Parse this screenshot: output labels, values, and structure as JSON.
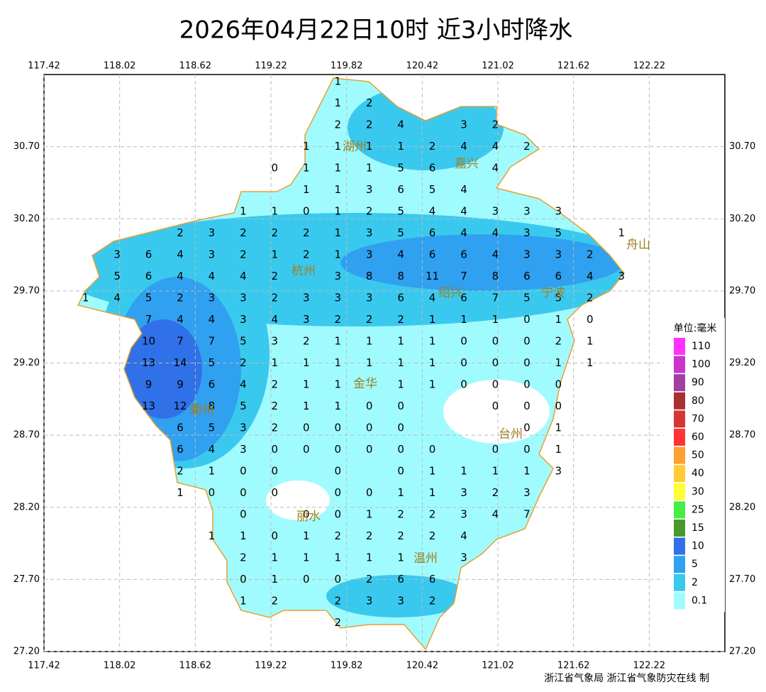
{
  "chart_data": {
    "type": "station-map",
    "title": "2026年04月22日10时  近3小时降水",
    "xlim": [
      117.42,
      122.82
    ],
    "ylim": [
      27.2,
      31.2
    ],
    "xticks": [
      117.42,
      118.02,
      118.62,
      119.22,
      119.82,
      120.42,
      121.02,
      121.62,
      122.22
    ],
    "yticks": [
      {
        "value": 30.7,
        "label": "30.70"
      },
      {
        "value": 30.2,
        "label": "30.20"
      },
      {
        "value": 29.7,
        "label": "29.70"
      },
      {
        "value": 29.2,
        "label": "29.20"
      },
      {
        "value": 28.7,
        "label": "28.70"
      },
      {
        "value": 28.2,
        "label": "28.20"
      },
      {
        "value": 27.7,
        "label": "27.70"
      },
      {
        "value": 27.2,
        "label": "27.20"
      }
    ],
    "grid": true,
    "rows": [
      {
        "lat": 31.15,
        "lon": [
          119.75
        ],
        "values": [
          1
        ]
      },
      {
        "lat": 31.0,
        "lon": [
          119.75,
          120.0
        ],
        "values": [
          1,
          2
        ]
      },
      {
        "lat": 30.85,
        "lon": [
          119.75,
          120.0,
          120.25,
          120.75,
          121.0
        ],
        "values": [
          2,
          2,
          4,
          3,
          2
        ]
      },
      {
        "lat": 30.7,
        "lon": [
          119.5,
          119.75,
          120.0,
          120.25,
          120.5,
          120.75,
          121.0,
          121.25
        ],
        "values": [
          1,
          1,
          1,
          1,
          2,
          4,
          4,
          2
        ]
      },
      {
        "lat": 30.55,
        "lon": [
          119.25,
          119.5,
          119.75,
          120.0,
          120.25,
          120.5,
          121.0
        ],
        "values": [
          0,
          1,
          1,
          1,
          5,
          6,
          4
        ]
      },
      {
        "lat": 30.4,
        "lon": [
          119.5,
          119.75,
          120.0,
          120.25,
          120.5,
          120.75
        ],
        "values": [
          1,
          1,
          3,
          6,
          5,
          4
        ]
      },
      {
        "lat": 30.25,
        "lon": [
          119.0,
          119.25,
          119.5,
          119.75,
          120.0,
          120.25,
          120.5,
          120.75,
          121.0,
          121.25,
          121.5
        ],
        "values": [
          1,
          1,
          0,
          1,
          2,
          5,
          4,
          4,
          3,
          3,
          3
        ]
      },
      {
        "lat": 30.1,
        "lon": [
          118.5,
          118.75,
          119.0,
          119.25,
          119.5,
          119.75,
          120.0,
          120.25,
          120.5,
          120.75,
          121.0,
          121.25,
          121.5,
          122.0
        ],
        "values": [
          2,
          3,
          2,
          2,
          2,
          1,
          3,
          5,
          6,
          4,
          4,
          3,
          5,
          1
        ]
      },
      {
        "lat": 29.95,
        "lon": [
          118.0,
          118.25,
          118.5,
          118.75,
          119.0,
          119.25,
          119.5,
          119.75,
          120.0,
          120.25,
          120.5,
          120.75,
          121.0,
          121.25,
          121.5,
          121.75
        ],
        "values": [
          3,
          6,
          4,
          3,
          2,
          1,
          2,
          1,
          3,
          4,
          6,
          6,
          4,
          3,
          3,
          2
        ]
      },
      {
        "lat": 29.8,
        "lon": [
          118.0,
          118.25,
          118.5,
          118.75,
          119.0,
          119.25,
          119.75,
          120.0,
          120.25,
          120.5,
          120.75,
          121.0,
          121.25,
          121.5,
          121.75,
          122.0
        ],
        "values": [
          5,
          6,
          4,
          4,
          4,
          2,
          3,
          8,
          8,
          11,
          7,
          8,
          6,
          6,
          4,
          3
        ]
      },
      {
        "lat": 29.65,
        "lon": [
          117.75,
          118.0,
          118.25,
          118.5,
          118.75,
          119.0,
          119.25,
          119.5,
          119.75,
          120.0,
          120.25,
          120.5,
          120.75,
          121.0,
          121.25,
          121.5,
          121.75
        ],
        "values": [
          1,
          4,
          5,
          2,
          3,
          3,
          2,
          3,
          3,
          3,
          6,
          4,
          6,
          7,
          5,
          5,
          2
        ]
      },
      {
        "lat": 29.5,
        "lon": [
          118.25,
          118.5,
          118.75,
          119.0,
          119.25,
          119.5,
          119.75,
          120.0,
          120.25,
          120.5,
          120.75,
          121.0,
          121.25,
          121.5,
          121.75
        ],
        "values": [
          7,
          4,
          4,
          3,
          4,
          3,
          2,
          2,
          2,
          1,
          1,
          1,
          0,
          1,
          0
        ]
      },
      {
        "lat": 29.35,
        "lon": [
          118.25,
          118.5,
          118.75,
          119.0,
          119.25,
          119.5,
          119.75,
          120.0,
          120.25,
          120.5,
          120.75,
          121.0,
          121.25,
          121.5,
          121.75
        ],
        "values": [
          10,
          7,
          7,
          5,
          3,
          2,
          1,
          1,
          1,
          1,
          0,
          0,
          0,
          2,
          1
        ]
      },
      {
        "lat": 29.2,
        "lon": [
          118.25,
          118.5,
          118.75,
          119.0,
          119.25,
          119.5,
          119.75,
          120.0,
          120.25,
          120.5,
          120.75,
          121.0,
          121.25,
          121.5,
          121.75
        ],
        "values": [
          13,
          14,
          5,
          2,
          1,
          1,
          1,
          1,
          1,
          1,
          0,
          0,
          0,
          1,
          1
        ]
      },
      {
        "lat": 29.05,
        "lon": [
          118.25,
          118.5,
          118.75,
          119.0,
          119.25,
          119.5,
          119.75,
          120.25,
          120.5,
          120.75,
          121.0,
          121.25,
          121.5
        ],
        "values": [
          9,
          9,
          6,
          4,
          2,
          1,
          1,
          1,
          1,
          0,
          0,
          0,
          0
        ]
      },
      {
        "lat": 28.9,
        "lon": [
          118.25,
          118.5,
          118.75,
          119.0,
          119.25,
          119.5,
          119.75,
          120.0,
          120.25,
          121.0,
          121.25,
          121.5
        ],
        "values": [
          13,
          12,
          8,
          5,
          2,
          1,
          1,
          0,
          0,
          0,
          0,
          0
        ]
      },
      {
        "lat": 28.75,
        "lon": [
          118.5,
          118.75,
          119.0,
          119.25,
          119.5,
          119.75,
          120.0,
          120.25,
          121.25,
          121.5
        ],
        "values": [
          6,
          5,
          3,
          2,
          0,
          0,
          0,
          0,
          0,
          1
        ]
      },
      {
        "lat": 28.6,
        "lon": [
          118.5,
          118.75,
          119.0,
          119.25,
          119.5,
          119.75,
          120.0,
          120.25,
          120.5,
          121.0,
          121.25,
          121.5
        ],
        "values": [
          6,
          4,
          3,
          0,
          0,
          0,
          0,
          0,
          0,
          0,
          0,
          1
        ]
      },
      {
        "lat": 28.45,
        "lon": [
          118.5,
          118.75,
          119.0,
          119.25,
          119.75,
          120.25,
          120.5,
          120.75,
          121.0,
          121.25,
          121.5
        ],
        "values": [
          2,
          1,
          0,
          0,
          0,
          0,
          1,
          1,
          1,
          1,
          3
        ]
      },
      {
        "lat": 28.3,
        "lon": [
          118.5,
          118.75,
          119.0,
          119.25,
          119.75,
          120.0,
          120.25,
          120.5,
          120.75,
          121.0,
          121.25
        ],
        "values": [
          1,
          0,
          0,
          0,
          0,
          0,
          1,
          1,
          3,
          2,
          3
        ]
      },
      {
        "lat": 28.15,
        "lon": [
          119.0,
          119.5,
          119.75,
          120.0,
          120.25,
          120.5,
          120.75,
          121.0,
          121.25
        ],
        "values": [
          0,
          0,
          0,
          1,
          2,
          2,
          3,
          4,
          7
        ]
      },
      {
        "lat": 28.0,
        "lon": [
          118.75,
          119.0,
          119.25,
          119.5,
          119.75,
          120.0,
          120.25,
          120.5,
          120.75
        ],
        "values": [
          1,
          1,
          0,
          1,
          2,
          2,
          2,
          2,
          4
        ]
      },
      {
        "lat": 27.85,
        "lon": [
          119.0,
          119.25,
          119.5,
          119.75,
          120.0,
          120.25,
          120.75
        ],
        "values": [
          2,
          1,
          1,
          1,
          1,
          1,
          3
        ]
      },
      {
        "lat": 27.7,
        "lon": [
          119.0,
          119.25,
          119.5,
          119.75,
          120.0,
          120.25,
          120.5
        ],
        "values": [
          0,
          1,
          0,
          0,
          2,
          6,
          6
        ]
      },
      {
        "lat": 27.55,
        "lon": [
          119.0,
          119.25,
          119.75,
          120.0,
          120.25,
          120.5
        ],
        "values": [
          1,
          2,
          2,
          3,
          3,
          2
        ]
      },
      {
        "lat": 27.4,
        "lon": [
          119.75
        ],
        "values": [
          2
        ]
      }
    ],
    "cities": [
      "湖州",
      "嘉兴",
      "杭州",
      "绍兴",
      "宁波",
      "舟山",
      "金华",
      "衢州",
      "台州",
      "丽水",
      "温州"
    ],
    "legend": {
      "title": "单位:毫米",
      "levels": [
        110,
        100,
        90,
        80,
        70,
        60,
        50,
        40,
        30,
        25,
        15,
        10,
        5,
        2,
        0.1
      ],
      "colors": [
        "#ff33ff",
        "#cc33cc",
        "#a040a0",
        "#aa3030",
        "#d83434",
        "#ff3333",
        "#ffa030",
        "#ffcc33",
        "#ffff33",
        "#44ee44",
        "#4a9a2a",
        "#3070e8",
        "#30a0f0",
        "#3ac9ee",
        "#a0fbff"
      ]
    },
    "credit": "浙江省气象局 浙江省气象防灾在线 制"
  }
}
